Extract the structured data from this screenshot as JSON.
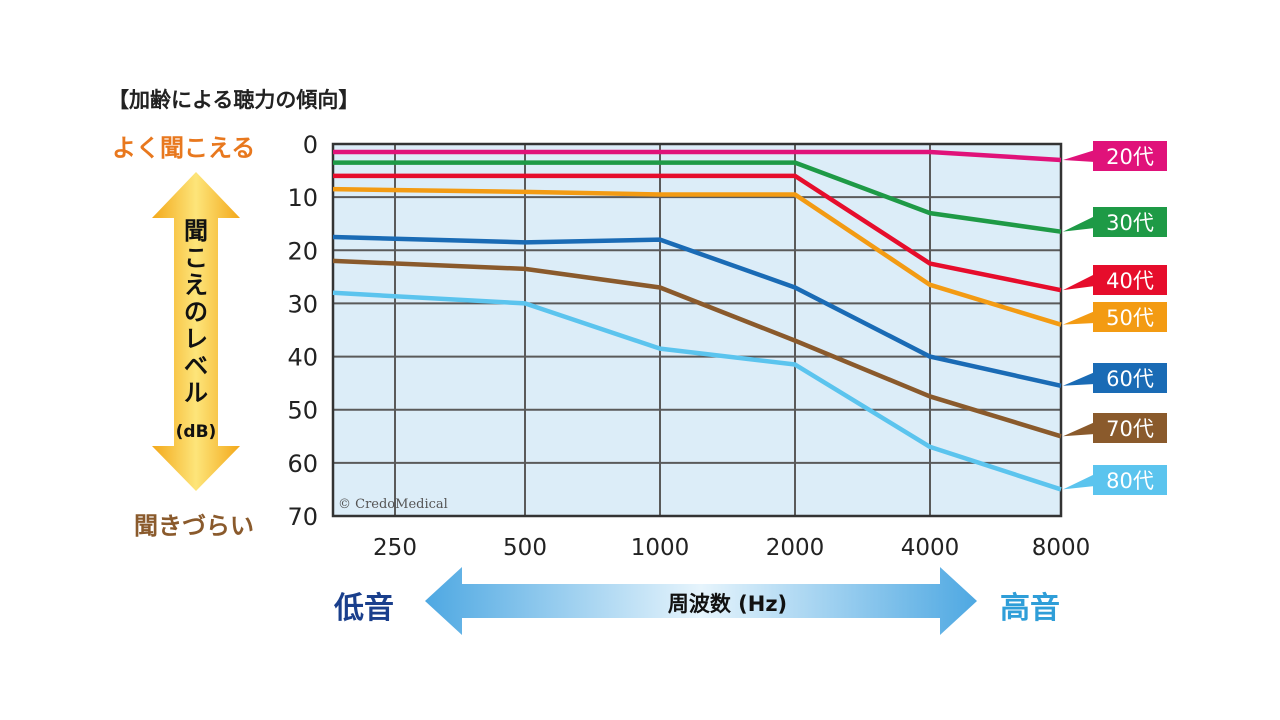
{
  "title": "【加齢による聴力の傾向】",
  "labels": {
    "good_hearing": "よく聞こえる",
    "poor_hearing": "聞きづらい",
    "vertical_label": "聞こえのレベル",
    "vertical_unit": "(dB)",
    "low_freq": "低音",
    "high_freq": "高音",
    "freq_axis": "周波数 (Hz)",
    "watermark": "© CredoMedical"
  },
  "colors": {
    "plot_bg": "#dcedf8",
    "grid": "#555555",
    "good": "#e8781e",
    "bad": "#8a5a2c",
    "low": "#1a3f8c",
    "high": "#2f9ed8",
    "arrow_v": "#f5b51c",
    "arrow_h": "#63b3e6"
  },
  "chart_data": {
    "type": "line",
    "x": [
      250,
      500,
      1000,
      2000,
      4000,
      8000
    ],
    "x_tick_labels": [
      "250",
      "500",
      "1000",
      "2000",
      "4000",
      "8000"
    ],
    "x_scale": "log",
    "y_ticks": [
      0,
      10,
      20,
      30,
      40,
      50,
      60,
      70
    ],
    "ylim": [
      0,
      70
    ],
    "y_inverted": true,
    "xlabel": "周波数 (Hz)",
    "ylabel": "聞こえのレベル (dB)",
    "grid": true,
    "legend": "right, at line ends",
    "series": [
      {
        "name": "20代",
        "color": "#e0127a",
        "values": [
          1.5,
          1.5,
          1.5,
          1.5,
          1.5,
          3
        ]
      },
      {
        "name": "30代",
        "color": "#1e9a46",
        "values": [
          3.5,
          3.5,
          3.5,
          3.5,
          13,
          16.5
        ]
      },
      {
        "name": "40代",
        "color": "#e60d2c",
        "values": [
          6,
          6,
          6,
          6,
          22.5,
          27.5
        ]
      },
      {
        "name": "50代",
        "color": "#f39b13",
        "values": [
          8.5,
          9,
          9.5,
          9.5,
          26.5,
          34
        ]
      },
      {
        "name": "60代",
        "color": "#1a6bb5",
        "values": [
          17.5,
          18.5,
          18,
          27,
          40,
          45.5
        ]
      },
      {
        "name": "70代",
        "color": "#8a5a2c",
        "values": [
          22,
          23.5,
          27,
          37,
          47.5,
          55
        ]
      },
      {
        "name": "80代",
        "color": "#5bc4ee",
        "values": [
          28,
          30,
          38.5,
          41.5,
          57,
          65
        ]
      }
    ]
  }
}
